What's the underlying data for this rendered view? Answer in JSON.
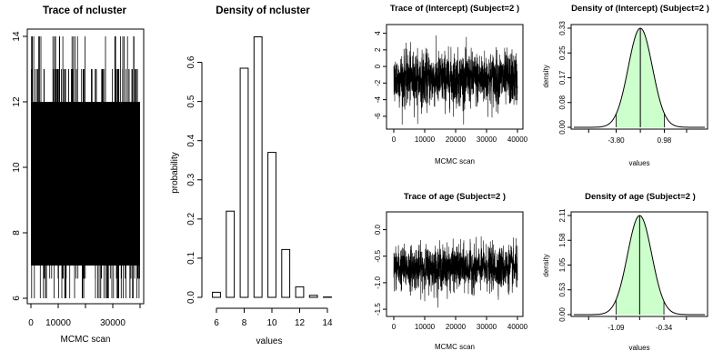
{
  "chart_data": [
    {
      "id": "trace-ncluster",
      "type": "line",
      "title": "Trace of ncluster",
      "xlabel": "MCMC scan",
      "ylabel": "",
      "xlim": [
        0,
        40000
      ],
      "ylim": [
        6,
        14
      ],
      "xticks": [
        0,
        10000,
        30000
      ],
      "yticks": [
        6,
        8,
        10,
        12,
        14
      ],
      "series": [
        {
          "values_min": 6,
          "values_max": 14,
          "dense_band": [
            7,
            12
          ]
        }
      ]
    },
    {
      "id": "density-ncluster",
      "type": "bar",
      "title": "Density of ncluster",
      "xlabel": "values",
      "ylabel": "probability",
      "xlim": [
        6,
        14
      ],
      "ylim": [
        0,
        0.65
      ],
      "xticks": [
        6,
        8,
        10,
        12,
        14
      ],
      "yticks": [
        0.0,
        0.1,
        0.2,
        0.3,
        0.4,
        0.5,
        0.6
      ],
      "categories": [
        6,
        7,
        8,
        9,
        10,
        11,
        12,
        13,
        14
      ],
      "values": [
        0.013,
        0.22,
        0.585,
        0.665,
        0.37,
        0.122,
        0.027,
        0.005,
        0.001
      ]
    },
    {
      "id": "trace-intercept",
      "type": "line",
      "title": "Trace of (Intercept) (Subject=2 )",
      "xlabel": "MCMC scan",
      "ylabel": "",
      "xlim": [
        0,
        40000
      ],
      "ylim": [
        -7,
        4.5
      ],
      "xticks": [
        0,
        10000,
        20000,
        30000,
        40000
      ],
      "yticks": [
        -6,
        -4,
        -2,
        0,
        2,
        4
      ],
      "series": [
        {
          "center": -1.5,
          "spread": 1.6,
          "min": -7,
          "max": 4.2
        }
      ]
    },
    {
      "id": "density-intercept",
      "type": "area",
      "title": "Density of (Intercept) (Subject=2 )",
      "xlabel": "values",
      "ylabel": "density",
      "xlim": [
        -8,
        5
      ],
      "ylim": [
        0,
        0.33
      ],
      "xtick_labels": [
        "-3.80",
        "0.98"
      ],
      "ytick_labels": [
        "0.00",
        "0.08",
        "0.17",
        "0.25",
        "0.33"
      ],
      "mean": -1.4,
      "sd": 1.2,
      "interval": [
        -3.8,
        0.98
      ],
      "fill_color": "#ccffcc"
    },
    {
      "id": "trace-age",
      "type": "line",
      "title": "Trace of age (Subject=2 )",
      "xlabel": "MCMC scan",
      "ylabel": "",
      "xlim": [
        0,
        40000
      ],
      "ylim": [
        -1.55,
        0.25
      ],
      "xticks": [
        0,
        10000,
        20000,
        30000,
        40000
      ],
      "yticks": [
        -1.5,
        -1.0,
        -0.5,
        0.0
      ],
      "series": [
        {
          "center": -0.72,
          "spread": 0.2,
          "min": -1.5,
          "max": 0.2
        }
      ]
    },
    {
      "id": "density-age",
      "type": "area",
      "title": "Density of age (Subject=2 )",
      "xlabel": "values",
      "ylabel": "density",
      "xlim": [
        -1.75,
        0.3
      ],
      "ylim": [
        0,
        2.11
      ],
      "xtick_labels": [
        "-1.09",
        "-0.34"
      ],
      "ytick_labels": [
        "0.00",
        "0.53",
        "1.05",
        "1.58",
        "2.11"
      ],
      "mean": -0.72,
      "sd": 0.19,
      "interval": [
        -1.09,
        -0.34
      ],
      "fill_color": "#ccffcc"
    }
  ]
}
